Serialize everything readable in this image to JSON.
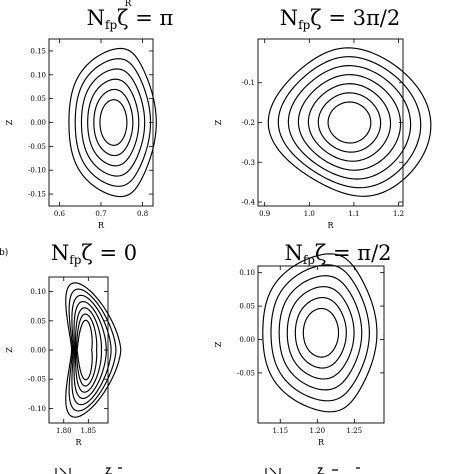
{
  "chart_data": [
    {
      "type": "contour",
      "title": {
        "prefix": "N",
        "sub": "fp",
        "rest": "ζ = π"
      },
      "xlabel": "R",
      "ylabel": "Z",
      "xlim": [
        0.575,
        0.825
      ],
      "ylim": [
        -0.175,
        0.175
      ],
      "xticks": [
        0.6,
        0.7,
        0.8
      ],
      "yticks": [
        0.15,
        0.1,
        0.05,
        0.0,
        -0.05,
        -0.1,
        -0.15
      ],
      "xtick_labels": [
        "0.6",
        "0.7",
        "0.8"
      ],
      "ytick_labels": [
        "0.15",
        "0.10",
        "0.05",
        "0.00",
        "-0.05",
        "-0.10",
        "-0.15"
      ],
      "flux_surface_count": 6,
      "shape": "oval",
      "axis_center": [
        0.73,
        0.0
      ],
      "outer_half_width": [
        0.105,
        0.155
      ]
    },
    {
      "type": "contour",
      "title": {
        "prefix": "N",
        "sub": "fp",
        "rest": "ζ = 3π/2"
      },
      "xlabel": "R",
      "ylabel": "Z",
      "xlim": [
        0.885,
        1.21
      ],
      "ylim": [
        -0.41,
        0.01
      ],
      "xticks": [
        0.9,
        1.0,
        1.1,
        1.2
      ],
      "yticks": [
        -0.1,
        -0.2,
        -0.3,
        -0.4
      ],
      "xtick_labels": [
        "0.9",
        "1.0",
        "1.1",
        "1.2"
      ],
      "ytick_labels": [
        "-0.1",
        "-0.2",
        "-0.3",
        "-0.4"
      ],
      "flux_surface_count": 7,
      "shape": "tilted",
      "axis_center": [
        1.09,
        -0.2
      ],
      "outer_half_width": [
        0.175,
        0.19
      ]
    },
    {
      "type": "contour",
      "title": {
        "prefix": "N",
        "sub": "fp",
        "rest": "ζ = 0"
      },
      "xlabel": "R",
      "ylabel": "Z",
      "xlim": [
        1.77,
        1.89
      ],
      "ylim": [
        -0.125,
        0.125
      ],
      "xticks": [
        1.8,
        1.85
      ],
      "yticks": [
        0.1,
        0.05,
        0.0,
        -0.05,
        -0.1
      ],
      "xtick_labels": [
        "1.80",
        "1.85"
      ],
      "ytick_labels": [
        "0.10",
        "0.05",
        "0.00",
        "-0.05",
        "-0.10"
      ],
      "flux_surface_count": 7,
      "shape": "bean",
      "axis_center": [
        1.85,
        0.0
      ],
      "outer_half_width": [
        0.05,
        0.115
      ]
    },
    {
      "type": "contour",
      "title": {
        "prefix": "N",
        "sub": "fp",
        "rest": "ζ = π/2"
      },
      "xlabel": "R",
      "ylabel": "Z",
      "xlim": [
        1.12,
        1.29
      ],
      "ylim": [
        -0.125,
        0.11
      ],
      "xticks": [
        1.15,
        1.2,
        1.25
      ],
      "yticks": [
        0.1,
        0.05,
        0.0,
        -0.05
      ],
      "xtick_labels": [
        "1.15",
        "1.20",
        "1.25"
      ],
      "ytick_labels": [
        "0.10",
        "0.05",
        "0.00",
        "-0.05"
      ],
      "flux_surface_count": 6,
      "shape": "oval",
      "axis_center": [
        1.205,
        0.01
      ],
      "outer_half_width": [
        0.077,
        0.118
      ]
    }
  ],
  "fragments": {
    "top_cut_label": "R",
    "panel_marker": "b)"
  }
}
